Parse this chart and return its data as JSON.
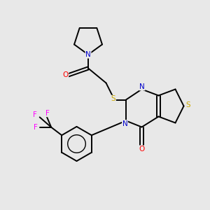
{
  "background_color": "#e8e8e8",
  "atom_colors": {
    "C": "#000000",
    "N": "#0000cc",
    "O": "#ff0000",
    "S": "#ccaa00",
    "F": "#ff00ff"
  },
  "figsize": [
    3.0,
    3.0
  ],
  "dpi": 100,
  "lw": 1.4,
  "fontsize": 7.5
}
